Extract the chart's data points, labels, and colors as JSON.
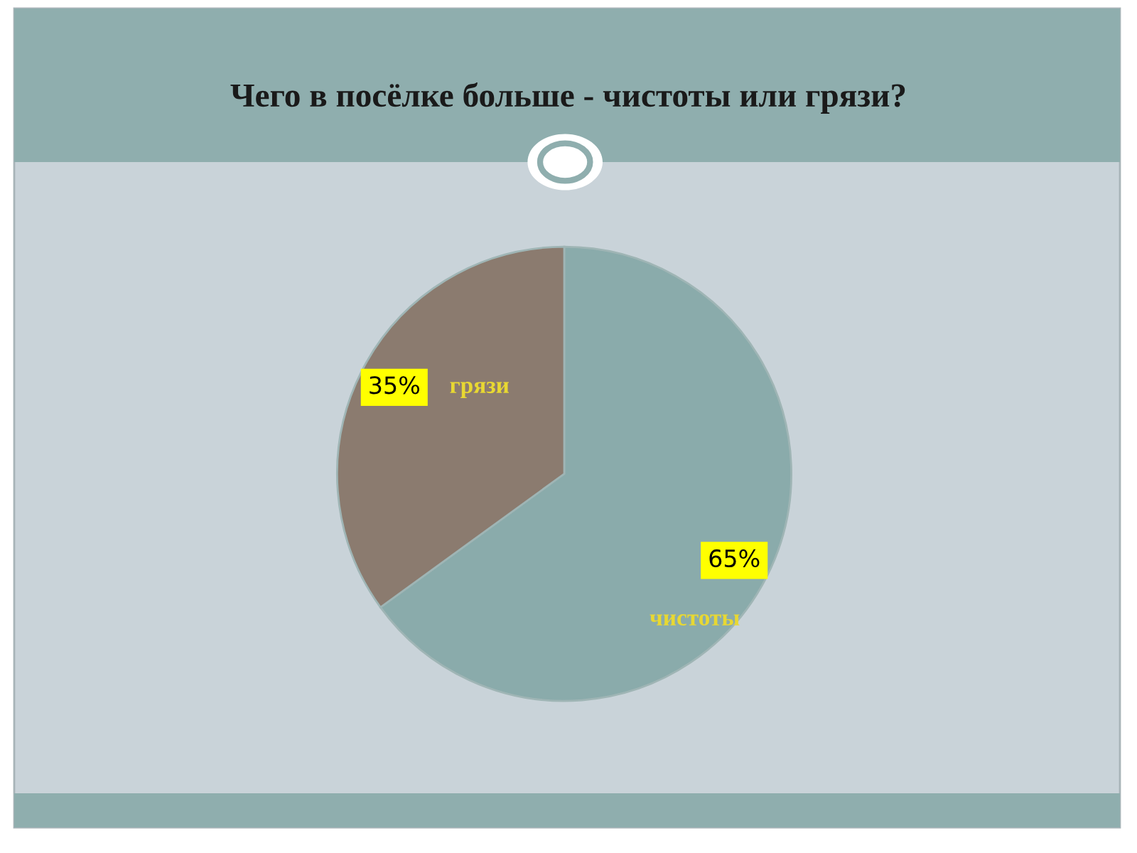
{
  "chart_data": {
    "type": "pie",
    "title": "Чего в посёлке больше - чистоты или грязи?",
    "categories": [
      "чистоты",
      "грязи"
    ],
    "values": [
      65,
      35
    ],
    "value_labels": [
      "65%",
      "35%"
    ],
    "colors": [
      "#8aabab",
      "#8b7b6f"
    ]
  }
}
